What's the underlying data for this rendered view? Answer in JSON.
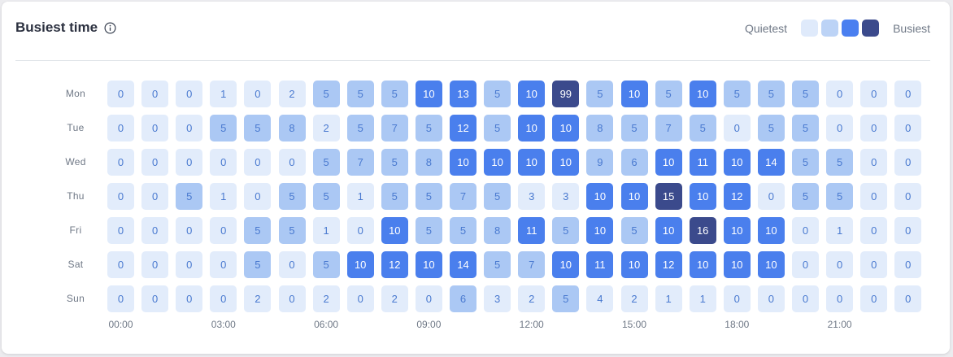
{
  "header": {
    "title": "Busiest time",
    "info_icon": "info-circle-icon"
  },
  "legend": {
    "low_label": "Quietest",
    "high_label": "Busiest",
    "swatches": [
      "#dfeafb",
      "#bcd3f6",
      "#4a7ff0",
      "#3b4a8c"
    ]
  },
  "colors": {
    "level0": "#e2ecfb",
    "level1": "#abc8f4",
    "level2": "#4a7fed",
    "level3": "#3b4a8c",
    "text_dark": "#4a7ad0",
    "text_light": "#ffffff"
  },
  "chart_data": {
    "type": "heatmap",
    "title": "Busiest time",
    "rows": [
      "Mon",
      "Tue",
      "Wed",
      "Thu",
      "Fri",
      "Sat",
      "Sun"
    ],
    "x_tick_labels": [
      "00:00",
      "03:00",
      "06:00",
      "09:00",
      "12:00",
      "15:00",
      "18:00",
      "21:00"
    ],
    "values": [
      [
        0,
        0,
        0,
        1,
        0,
        2,
        5,
        5,
        5,
        10,
        13,
        5,
        10,
        99,
        5,
        10,
        5,
        10,
        5,
        5,
        5,
        0,
        0,
        0
      ],
      [
        0,
        0,
        0,
        5,
        5,
        8,
        2,
        5,
        7,
        5,
        12,
        5,
        10,
        10,
        8,
        5,
        7,
        5,
        0,
        5,
        5,
        0,
        0,
        0
      ],
      [
        0,
        0,
        0,
        0,
        0,
        0,
        5,
        7,
        5,
        8,
        10,
        10,
        10,
        10,
        9,
        6,
        10,
        11,
        10,
        14,
        5,
        5,
        0,
        0
      ],
      [
        0,
        0,
        5,
        1,
        0,
        5,
        5,
        1,
        5,
        5,
        7,
        5,
        3,
        3,
        10,
        10,
        15,
        10,
        12,
        0,
        5,
        5,
        0,
        0
      ],
      [
        0,
        0,
        0,
        0,
        5,
        5,
        1,
        0,
        10,
        5,
        5,
        8,
        11,
        5,
        10,
        5,
        10,
        16,
        10,
        10,
        0,
        1,
        0,
        0
      ],
      [
        0,
        0,
        0,
        0,
        5,
        0,
        5,
        10,
        12,
        10,
        14,
        5,
        7,
        10,
        11,
        10,
        12,
        10,
        10,
        10,
        0,
        0,
        0,
        0
      ],
      [
        0,
        0,
        0,
        0,
        2,
        0,
        2,
        0,
        2,
        0,
        6,
        3,
        2,
        5,
        4,
        2,
        1,
        1,
        0,
        0,
        0,
        0,
        0,
        0
      ]
    ],
    "levels": [
      [
        0,
        0,
        0,
        0,
        0,
        0,
        1,
        1,
        1,
        2,
        2,
        1,
        2,
        3,
        1,
        2,
        1,
        2,
        1,
        1,
        1,
        0,
        0,
        0
      ],
      [
        0,
        0,
        0,
        1,
        1,
        1,
        0,
        1,
        1,
        1,
        2,
        1,
        2,
        2,
        1,
        1,
        1,
        1,
        0,
        1,
        1,
        0,
        0,
        0
      ],
      [
        0,
        0,
        0,
        0,
        0,
        0,
        1,
        1,
        1,
        1,
        2,
        2,
        2,
        2,
        1,
        1,
        2,
        2,
        2,
        2,
        1,
        1,
        0,
        0
      ],
      [
        0,
        0,
        1,
        0,
        0,
        1,
        1,
        0,
        1,
        1,
        1,
        1,
        0,
        0,
        2,
        2,
        3,
        2,
        2,
        0,
        1,
        1,
        0,
        0
      ],
      [
        0,
        0,
        0,
        0,
        1,
        1,
        0,
        0,
        2,
        1,
        1,
        1,
        2,
        1,
        2,
        1,
        2,
        3,
        2,
        2,
        0,
        0,
        0,
        0
      ],
      [
        0,
        0,
        0,
        0,
        1,
        0,
        1,
        2,
        2,
        2,
        2,
        1,
        1,
        2,
        2,
        2,
        2,
        2,
        2,
        2,
        0,
        0,
        0,
        0
      ],
      [
        0,
        0,
        0,
        0,
        0,
        0,
        0,
        0,
        0,
        0,
        1,
        0,
        0,
        1,
        0,
        0,
        0,
        0,
        0,
        0,
        0,
        0,
        0,
        0
      ]
    ]
  }
}
